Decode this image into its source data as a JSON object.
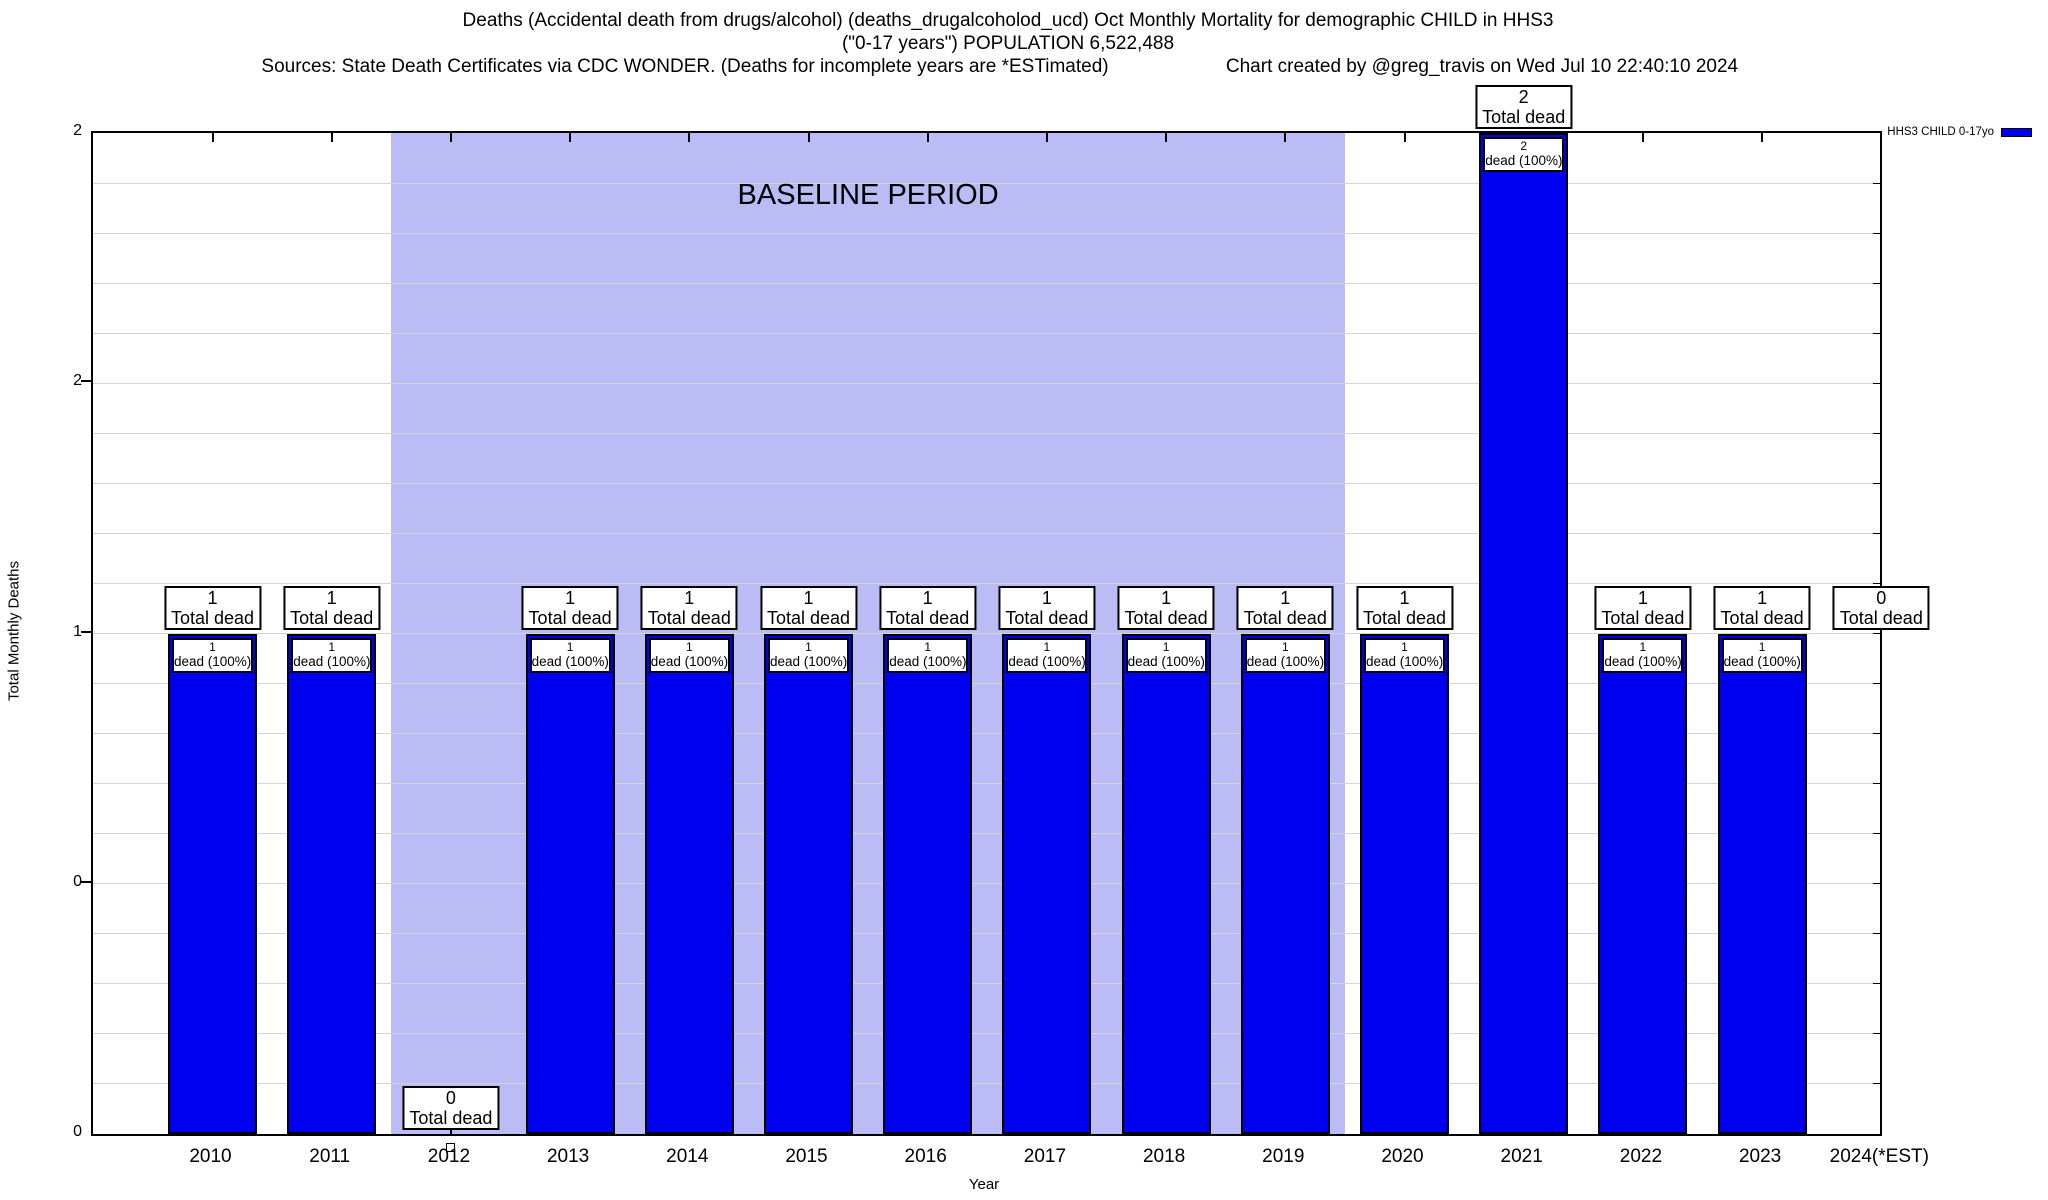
{
  "header": {
    "title_line1": "Deaths (Accidental death from drugs/alcohol) (deaths_drugalcoholod_ucd) Oct Monthly Mortality for demographic CHILD in HHS3",
    "title_line2": "(\"0-17 years\") POPULATION 6,522,488",
    "sources": "Sources: State Death Certificates via CDC WONDER. (Deaths for incomplete years are *ESTimated)",
    "created": "Chart created by @greg_travis on Wed Jul 10 22:40:10 2024"
  },
  "legend": {
    "label": "HHS3 CHILD 0-17yo",
    "swatch_color": "#0000f0"
  },
  "axes": {
    "ylabel": "Total Monthly Deaths",
    "xlabel": "Year"
  },
  "chart_data": {
    "type": "bar",
    "title": "Deaths (Accidental death from drugs/alcohol) (deaths_drugalcoholod_ucd) Oct Monthly Mortality for demographic CHILD in HHS3 (\"0-17 years\") POPULATION 6,522,488",
    "xlabel": "Year",
    "ylabel": "Total Monthly Deaths",
    "ylim": [
      0,
      2
    ],
    "grid": "horizontal-minor",
    "minor_grid_step": 0.1,
    "ytick_positions": [
      0,
      0.5,
      1,
      1.5,
      2
    ],
    "ytick_labels": [
      "0",
      "0",
      "1",
      "2",
      "2"
    ],
    "bar_color": "#0000f0",
    "bar_border_color": "#000000",
    "grid_color": "#d4d4d4",
    "categories": [
      "2010",
      "2011",
      "2012",
      "2013",
      "2014",
      "2015",
      "2016",
      "2017",
      "2018",
      "2019",
      "2020",
      "2021",
      "2022",
      "2023",
      "2024(*EST)"
    ],
    "values": [
      1,
      1,
      0,
      1,
      1,
      1,
      1,
      1,
      1,
      1,
      1,
      2,
      1,
      1,
      0
    ],
    "bars": [
      {
        "year": "2010",
        "value": 1,
        "total_label": "1",
        "total_caption": "Total dead",
        "inner_label": "1",
        "inner_caption": "dead (100%)",
        "label_anchor": 1
      },
      {
        "year": "2011",
        "value": 1,
        "total_label": "1",
        "total_caption": "Total dead",
        "inner_label": "1",
        "inner_caption": "dead (100%)",
        "label_anchor": 1
      },
      {
        "year": "2012",
        "value": 0,
        "total_label": "0",
        "total_caption": "Total dead",
        "label_anchor": 0,
        "zero_marker": true
      },
      {
        "year": "2013",
        "value": 1,
        "total_label": "1",
        "total_caption": "Total dead",
        "inner_label": "1",
        "inner_caption": "dead (100%)",
        "label_anchor": 1
      },
      {
        "year": "2014",
        "value": 1,
        "total_label": "1",
        "total_caption": "Total dead",
        "inner_label": "1",
        "inner_caption": "dead (100%)",
        "label_anchor": 1
      },
      {
        "year": "2015",
        "value": 1,
        "total_label": "1",
        "total_caption": "Total dead",
        "inner_label": "1",
        "inner_caption": "dead (100%)",
        "label_anchor": 1
      },
      {
        "year": "2016",
        "value": 1,
        "total_label": "1",
        "total_caption": "Total dead",
        "inner_label": "1",
        "inner_caption": "dead (100%)",
        "label_anchor": 1
      },
      {
        "year": "2017",
        "value": 1,
        "total_label": "1",
        "total_caption": "Total dead",
        "inner_label": "1",
        "inner_caption": "dead (100%)",
        "label_anchor": 1
      },
      {
        "year": "2018",
        "value": 1,
        "total_label": "1",
        "total_caption": "Total dead",
        "inner_label": "1",
        "inner_caption": "dead (100%)",
        "label_anchor": 1
      },
      {
        "year": "2019",
        "value": 1,
        "total_label": "1",
        "total_caption": "Total dead",
        "inner_label": "1",
        "inner_caption": "dead (100%)",
        "label_anchor": 1
      },
      {
        "year": "2020",
        "value": 1,
        "total_label": "1",
        "total_caption": "Total dead",
        "inner_label": "1",
        "inner_caption": "dead (100%)",
        "label_anchor": 1
      },
      {
        "year": "2021",
        "value": 2,
        "total_label": "2",
        "total_caption": "Total dead",
        "inner_label": "2",
        "inner_caption": "dead (100%)",
        "label_anchor": 2
      },
      {
        "year": "2022",
        "value": 1,
        "total_label": "1",
        "total_caption": "Total dead",
        "inner_label": "1",
        "inner_caption": "dead (100%)",
        "label_anchor": 1
      },
      {
        "year": "2023",
        "value": 1,
        "total_label": "1",
        "total_caption": "Total dead",
        "inner_label": "1",
        "inner_caption": "dead (100%)",
        "label_anchor": 1
      },
      {
        "year": "2024(*EST)",
        "value": 0,
        "total_label": "0",
        "total_caption": "Total dead",
        "label_anchor": 1
      }
    ],
    "baseline_band": {
      "start_year": "2012",
      "end_year": "2019",
      "color": "#bbbbf5",
      "label": "BASELINE PERIOD"
    },
    "legend_position": "top-right-outside",
    "legend_entries": [
      {
        "name": "HHS3 CHILD 0-17yo",
        "color": "#0000f0"
      }
    ]
  }
}
